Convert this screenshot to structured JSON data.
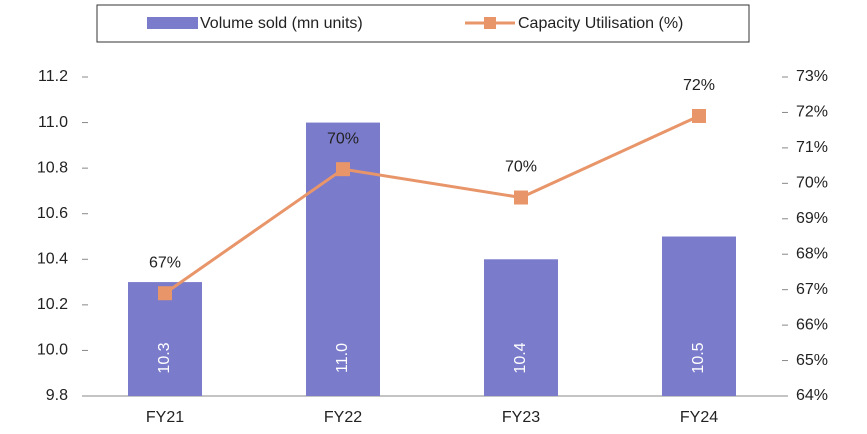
{
  "chart_data": {
    "type": "bar",
    "categories": [
      "FY21",
      "FY22",
      "FY23",
      "FY24"
    ],
    "series": [
      {
        "name": "Volume sold (mn units)",
        "type": "bar",
        "color": "#7b7bcc",
        "values": [
          10.3,
          11.0,
          10.4,
          10.5
        ],
        "value_labels": [
          "10.3",
          "11.0",
          "10.4",
          "10.5"
        ]
      },
      {
        "name": "Capacity Utilisation (%)",
        "type": "line",
        "axis": "y2",
        "color": "#e8956a",
        "values": [
          66.9,
          70.4,
          69.6,
          71.9
        ],
        "value_labels": [
          "67%",
          "70%",
          "70%",
          "72%"
        ]
      }
    ],
    "ylim": [
      9.8,
      11.2
    ],
    "yticks": [
      9.8,
      {
        "value": 10.0,
        "label": "10.0"
      },
      10.2,
      10.4,
      10.6,
      10.8,
      {
        "value": 11.0,
        "label": "11.0"
      },
      11.2
    ],
    "y2lim": [
      64,
      73
    ],
    "y2ticks": [
      {
        "value": 64,
        "label": "64%"
      },
      {
        "value": 65,
        "label": "65%"
      },
      {
        "value": 66,
        "label": "66%"
      },
      {
        "value": 67,
        "label": "67%"
      },
      {
        "value": 68,
        "label": "68%"
      },
      {
        "value": 69,
        "label": "69%"
      },
      {
        "value": 70,
        "label": "70%"
      },
      {
        "value": 71,
        "label": "71%"
      },
      {
        "value": 72,
        "label": "72%"
      },
      {
        "value": 73,
        "label": "73%"
      }
    ],
    "grid": false,
    "legend": "top"
  }
}
